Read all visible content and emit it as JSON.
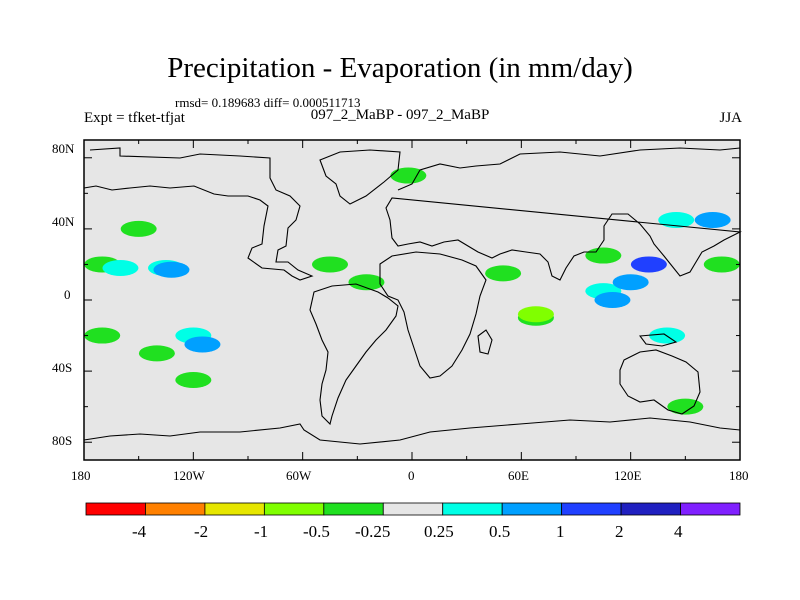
{
  "header": {
    "title": "Precipitation - Evaporation (in mm/day)",
    "stats": "rmsd= 0.189683 diff= 0.000511713",
    "experiment": "Expt = tfket-tfjat",
    "cases": "097_2_MaBP - 097_2_MaBP",
    "season": "JJA"
  },
  "axes": {
    "lat_labels": [
      "80N",
      "40N",
      "0",
      "40S",
      "80S"
    ],
    "lon_labels": [
      "180",
      "120W",
      "60W",
      "0",
      "60E",
      "120E",
      "180"
    ]
  },
  "colorbar": {
    "labels": [
      "-4",
      "-2",
      "-1",
      "-0.5",
      "-0.25",
      "0.25",
      "0.5",
      "1",
      "2",
      "4"
    ],
    "colors": [
      "#ff0000",
      "#ff8000",
      "#e6e600",
      "#80ff00",
      "#20e020",
      "#e6e6e6",
      "#00ffe6",
      "#00a0ff",
      "#2040ff",
      "#2020c0",
      "#8020ff"
    ]
  },
  "map": {
    "background_color": "#e6e6e6",
    "features": [
      {
        "lon": -170,
        "lat": 20,
        "color": "#20e020"
      },
      {
        "lon": -160,
        "lat": 18,
        "color": "#00ffe6"
      },
      {
        "lon": -135,
        "lat": 18,
        "color": "#00ffe6"
      },
      {
        "lon": -132,
        "lat": 17,
        "color": "#00a0ff"
      },
      {
        "lon": -150,
        "lat": 40,
        "color": "#20e020"
      },
      {
        "lon": -120,
        "lat": -20,
        "color": "#00ffe6"
      },
      {
        "lon": -115,
        "lat": -25,
        "color": "#00a0ff"
      },
      {
        "lon": -170,
        "lat": -20,
        "color": "#20e020"
      },
      {
        "lon": -120,
        "lat": -45,
        "color": "#20e020"
      },
      {
        "lon": -140,
        "lat": -30,
        "color": "#20e020"
      },
      {
        "lon": -45,
        "lat": 20,
        "color": "#20e020"
      },
      {
        "lon": -25,
        "lat": 10,
        "color": "#20e020"
      },
      {
        "lon": -2,
        "lat": 70,
        "color": "#20e020"
      },
      {
        "lon": 50,
        "lat": 15,
        "color": "#20e020"
      },
      {
        "lon": 68,
        "lat": -10,
        "color": "#20e020"
      },
      {
        "lon": 68,
        "lat": -8,
        "color": "#80ff00"
      },
      {
        "lon": 105,
        "lat": 25,
        "color": "#20e020"
      },
      {
        "lon": 105,
        "lat": 5,
        "color": "#00ffe6"
      },
      {
        "lon": 110,
        "lat": 0,
        "color": "#00a0ff"
      },
      {
        "lon": 120,
        "lat": 10,
        "color": "#00a0ff"
      },
      {
        "lon": 130,
        "lat": 20,
        "color": "#2040ff"
      },
      {
        "lon": 145,
        "lat": 45,
        "color": "#00ffe6"
      },
      {
        "lon": 165,
        "lat": 45,
        "color": "#00a0ff"
      },
      {
        "lon": 170,
        "lat": 20,
        "color": "#20e020"
      },
      {
        "lon": 140,
        "lat": -20,
        "color": "#00ffe6"
      },
      {
        "lon": 150,
        "lat": -60,
        "color": "#20e020"
      }
    ]
  }
}
